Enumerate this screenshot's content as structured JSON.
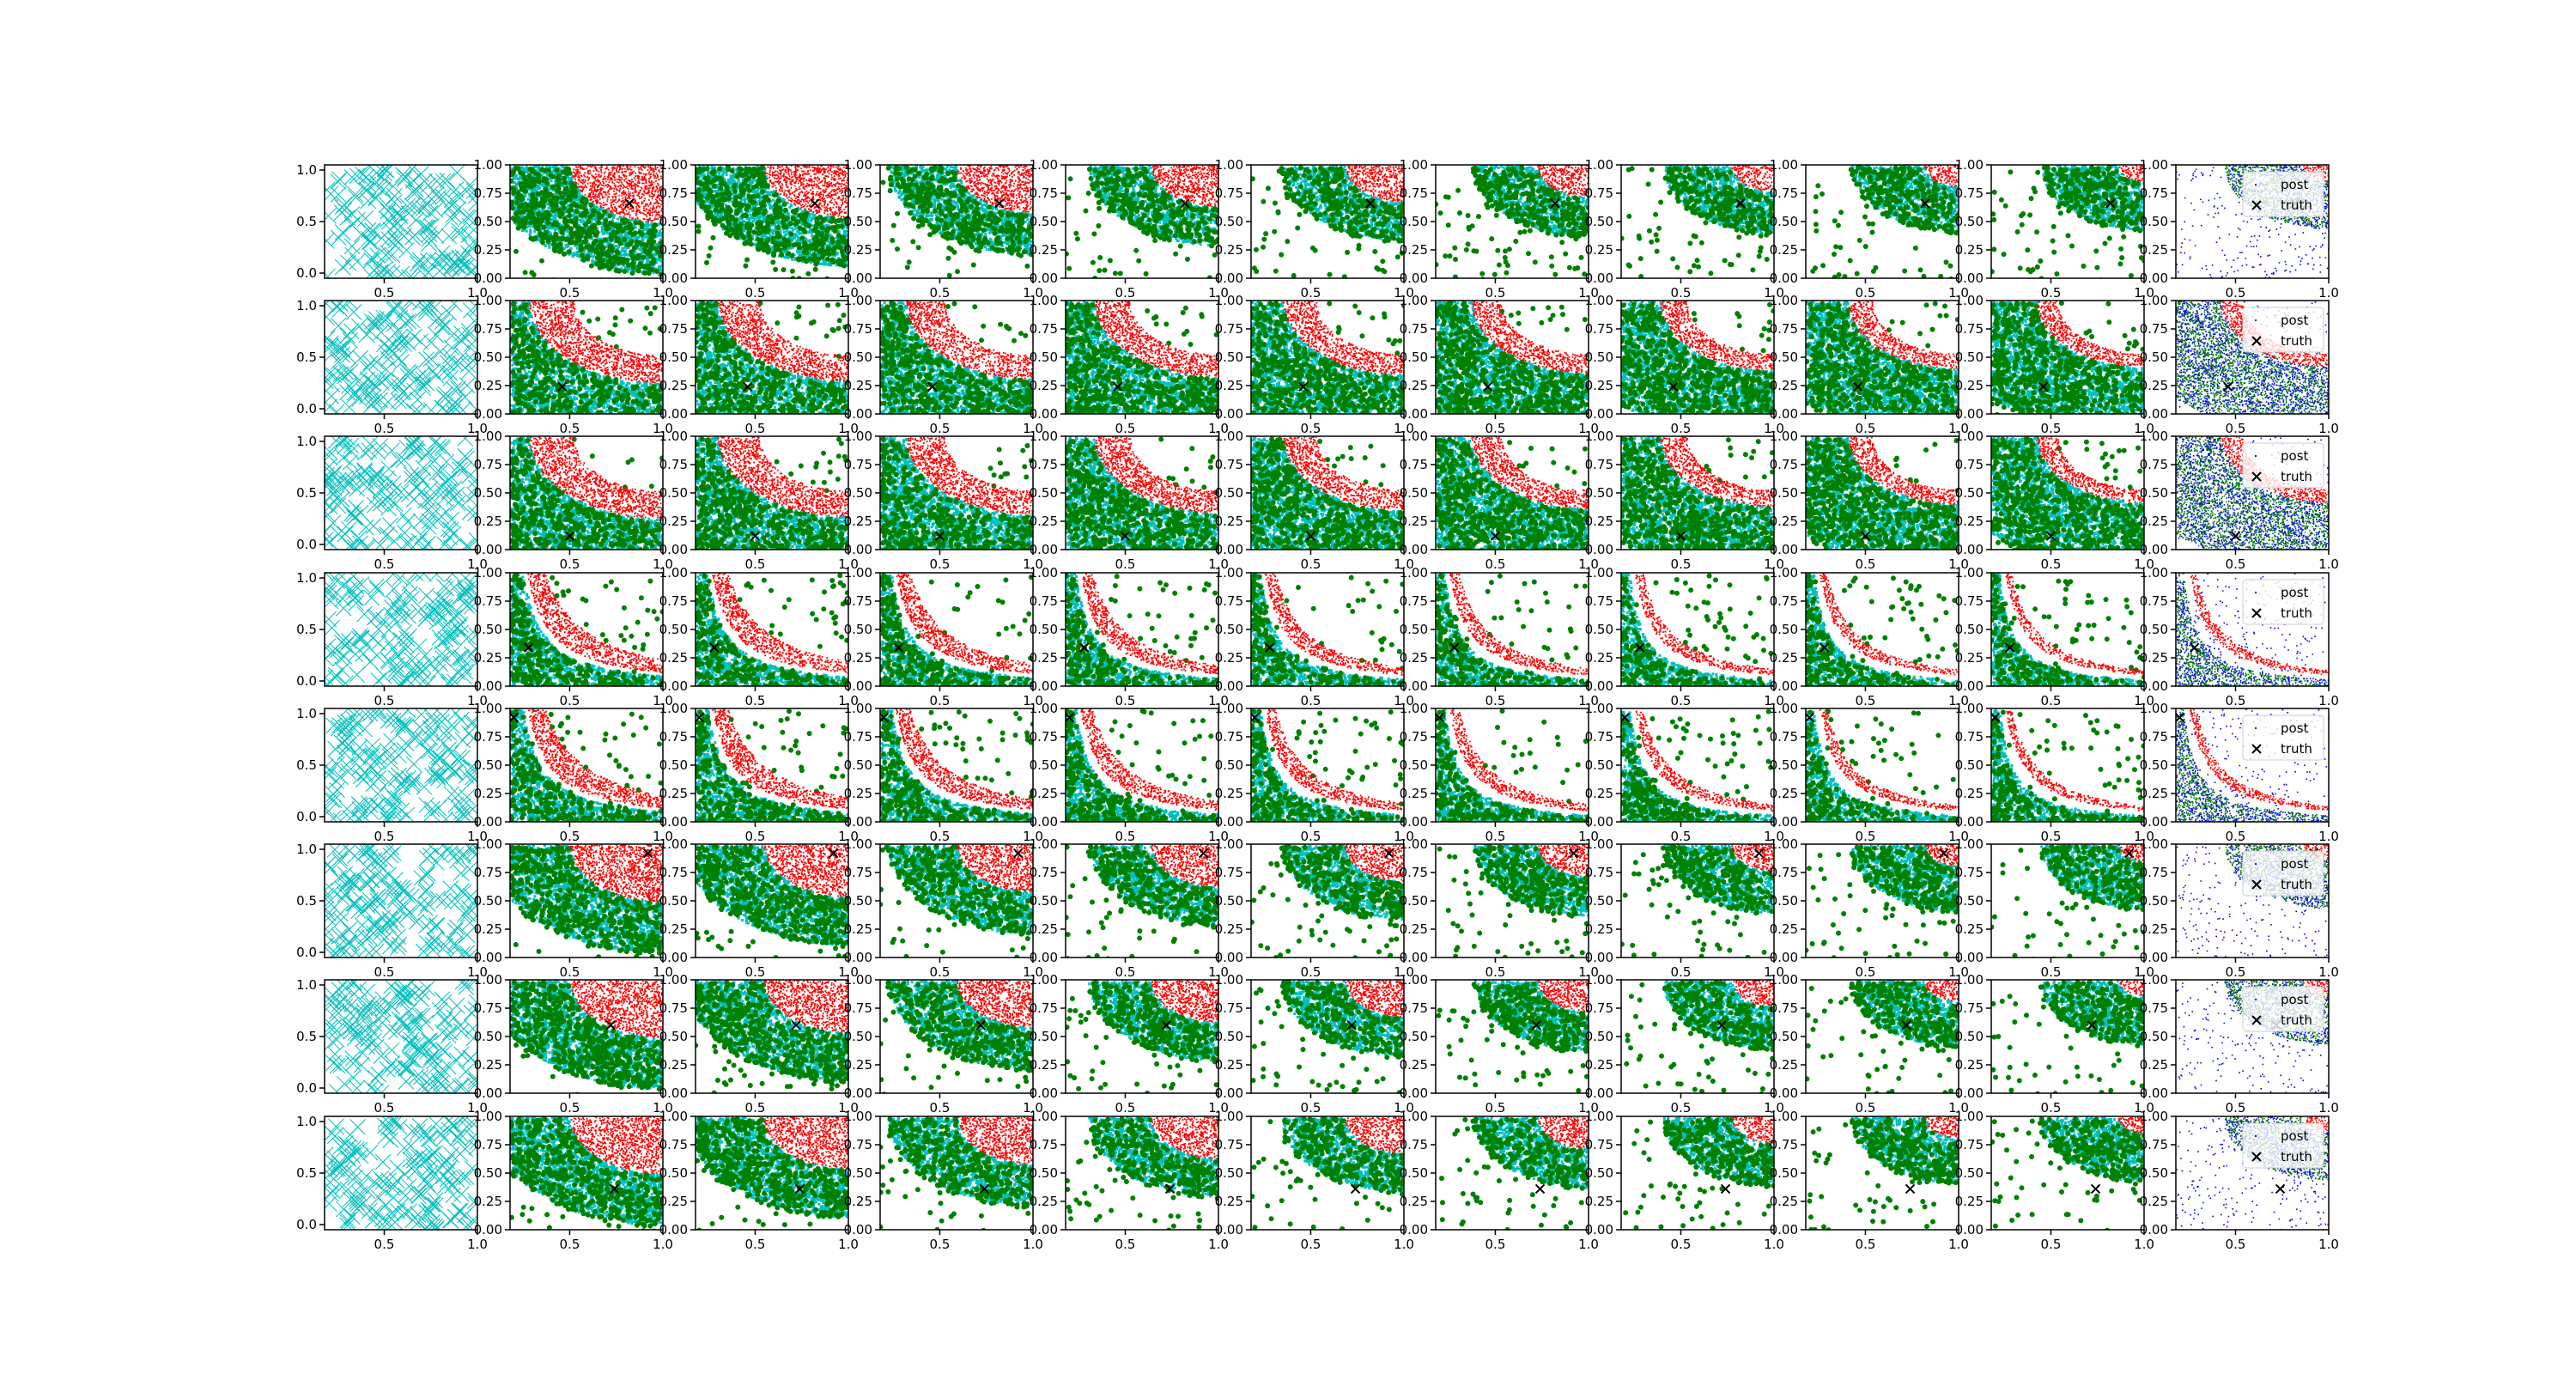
{
  "chart_data": {
    "type": "scatter",
    "layout": {
      "rows": 8,
      "cols": 11
    },
    "axes": {
      "first_column": {
        "xlim": [
          0.18,
          1.0
        ],
        "ylim": [
          -0.05,
          1.05
        ],
        "xticks": [
          "0.5",
          "1.0"
        ],
        "yticks": [
          "0.0",
          "0.5",
          "1.0"
        ]
      },
      "other_columns": {
        "xlim": [
          0.18,
          1.0
        ],
        "ylim": [
          0.0,
          1.0
        ],
        "xticks": [
          "0.5",
          "1.0"
        ],
        "yticks": [
          "0.00",
          "0.25",
          "0.50",
          "0.75",
          "1.00"
        ]
      }
    },
    "legend": {
      "entries": [
        "post",
        "truth"
      ],
      "placement": "top-right",
      "shown_in_column": 11
    },
    "colors": {
      "samples": "#00bfbf",
      "accepted": "#008000",
      "band": "#ff0000",
      "post": "#0000ff",
      "truth": "#000000"
    },
    "truth_points": [
      {
        "row": 1,
        "x": 0.82,
        "y": 0.66
      },
      {
        "row": 2,
        "x": 0.46,
        "y": 0.24
      },
      {
        "row": 3,
        "x": 0.5,
        "y": 0.12
      },
      {
        "row": 4,
        "x": 0.28,
        "y": 0.34
      },
      {
        "row": 5,
        "x": 0.2,
        "y": 0.92
      },
      {
        "row": 6,
        "x": 0.92,
        "y": 0.92
      },
      {
        "row": 7,
        "x": 0.72,
        "y": 0.6
      },
      {
        "row": 8,
        "x": 0.74,
        "y": 0.36
      }
    ],
    "boundary_families": [
      {
        "rows": [
          1,
          6,
          7,
          8
        ],
        "shape": "upper-right corner region",
        "radii_by_column": [
          0.95,
          0.88,
          0.78,
          0.7,
          0.66,
          0.62,
          0.6,
          0.58,
          0.56,
          0.55
        ]
      },
      {
        "rows": [
          2,
          3
        ],
        "shape": "arc curves concave to upper-right",
        "radii_by_column": [
          0.55,
          0.5,
          0.46,
          0.42,
          0.4,
          0.38,
          0.37,
          0.36,
          0.35,
          0.35
        ]
      },
      {
        "rows": [
          4,
          5
        ],
        "shape": "hyperbolic bands",
        "constants_by_column": [
          0.09,
          0.085,
          0.08,
          0.075,
          0.07,
          0.068,
          0.066,
          0.065,
          0.064,
          0.063
        ]
      }
    ]
  },
  "legend_labels": {
    "post": "post",
    "truth": "truth"
  }
}
